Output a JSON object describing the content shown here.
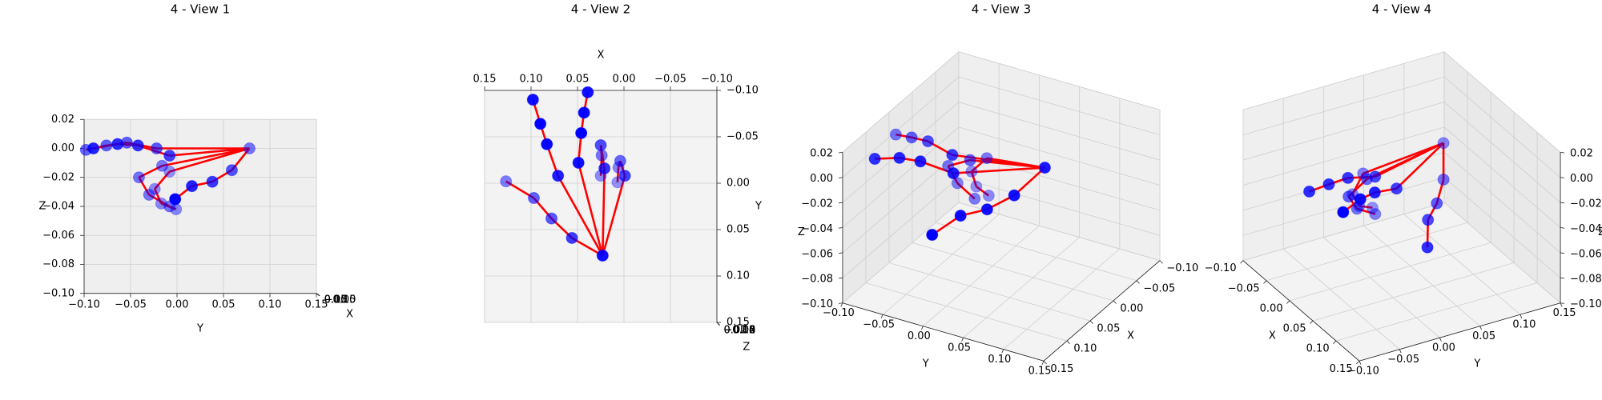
{
  "chart_data": [
    {
      "type": "scatter3d",
      "title": "4 - View 1",
      "elev": 0,
      "azim": 0,
      "xlabel": "X",
      "ylabel": "Y",
      "zlabel": "Z",
      "color": "#0000ff",
      "line_color": "#ff0000",
      "x": [
        0.023,
        0.056,
        0.078,
        0.097,
        0.127,
        0.071,
        0.083,
        0.09,
        0.098,
        0.049,
        0.046,
        0.043,
        0.039,
        0.021,
        0.025,
        0.024,
        0.025,
        -0.001,
        0.004,
        0.006,
        0.007
      ],
      "y": [
        0.078,
        0.059,
        0.038,
        0.016,
        -0.002,
        -0.008,
        -0.042,
        -0.064,
        -0.09,
        -0.022,
        -0.054,
        -0.076,
        -0.098,
        -0.016,
        -0.041,
        -0.03,
        -0.008,
        -0.008,
        -0.024,
        -0.017,
        -0.001
      ],
      "z": [
        0.0,
        -0.015,
        -0.023,
        -0.026,
        -0.035,
        -0.005,
        0.002,
        0.003,
        0.0,
        0.0,
        0.004,
        0.002,
        -0.001,
        -0.012,
        -0.02,
        -0.032,
        -0.04,
        -0.016,
        -0.028,
        -0.038,
        -0.042
      ],
      "xlim": [
        -0.1,
        0.15
      ],
      "ylim": [
        -0.1,
        0.15
      ],
      "zlim": [
        -0.1,
        0.02
      ],
      "xticks": [
        {
          "value": -0.1,
          "label": "−0.10"
        },
        {
          "value": -0.05,
          "label": "−0.05"
        },
        {
          "value": 0,
          "label": "0.00"
        },
        {
          "value": 0.05,
          "label": "0.05"
        },
        {
          "value": 0.1,
          "label": "0.10"
        },
        {
          "value": 0.15,
          "label": "0.15"
        }
      ],
      "yticks": [
        {
          "value": -0.1,
          "label": "−0.10"
        },
        {
          "value": -0.05,
          "label": "−0.05"
        },
        {
          "value": 0,
          "label": "0.00"
        },
        {
          "value": 0.05,
          "label": "0.05"
        },
        {
          "value": 0.1,
          "label": "0.10"
        },
        {
          "value": 0.15,
          "label": "0.15"
        }
      ],
      "zticks": [
        {
          "value": -0.1,
          "label": "−0.10"
        },
        {
          "value": -0.08,
          "label": "−0.08"
        },
        {
          "value": -0.06,
          "label": "−0.06"
        },
        {
          "value": -0.04,
          "label": "−0.04"
        },
        {
          "value": -0.02,
          "label": "−0.02"
        },
        {
          "value": 0,
          "label": "0.00"
        },
        {
          "value": 0.02,
          "label": "0.02"
        }
      ]
    },
    {
      "type": "scatter3d",
      "title": "4 - View 2",
      "elev": 90,
      "azim": 90,
      "xlabel": "X",
      "ylabel": "Y",
      "zlabel": "Z",
      "color": "#0000ff",
      "line_color": "#ff0000",
      "x": [
        0.023,
        0.056,
        0.078,
        0.097,
        0.127,
        0.071,
        0.083,
        0.09,
        0.098,
        0.049,
        0.046,
        0.043,
        0.039,
        0.021,
        0.025,
        0.024,
        0.025,
        -0.001,
        0.004,
        0.006,
        0.007
      ],
      "y": [
        0.078,
        0.059,
        0.038,
        0.016,
        -0.002,
        -0.008,
        -0.042,
        -0.064,
        -0.09,
        -0.022,
        -0.054,
        -0.076,
        -0.098,
        -0.016,
        -0.041,
        -0.03,
        -0.008,
        -0.008,
        -0.024,
        -0.017,
        -0.001
      ],
      "z": [
        0.0,
        -0.015,
        -0.023,
        -0.026,
        -0.035,
        -0.005,
        0.002,
        0.003,
        0.0,
        0.0,
        0.004,
        0.002,
        -0.001,
        -0.012,
        -0.02,
        -0.032,
        -0.04,
        -0.016,
        -0.028,
        -0.038,
        -0.042
      ],
      "xlim": [
        -0.1,
        0.15
      ],
      "ylim": [
        -0.1,
        0.15
      ],
      "zlim": [
        -0.1,
        0.02
      ],
      "xticks": [
        {
          "value": -0.1,
          "label": "−0.10"
        },
        {
          "value": -0.05,
          "label": "−0.05"
        },
        {
          "value": 0,
          "label": "0.00"
        },
        {
          "value": 0.05,
          "label": "0.05"
        },
        {
          "value": 0.1,
          "label": "0.10"
        },
        {
          "value": 0.15,
          "label": "0.15"
        }
      ],
      "yticks": [
        {
          "value": -0.1,
          "label": "−0.10"
        },
        {
          "value": -0.05,
          "label": "−0.05"
        },
        {
          "value": 0,
          "label": "0.00"
        },
        {
          "value": 0.05,
          "label": "0.05"
        },
        {
          "value": 0.1,
          "label": "0.10"
        },
        {
          "value": 0.15,
          "label": "0.15"
        }
      ],
      "zticks": [
        {
          "value": -0.1,
          "label": "−0.10"
        },
        {
          "value": -0.08,
          "label": "−0.08"
        },
        {
          "value": -0.06,
          "label": "−0.06"
        },
        {
          "value": -0.04,
          "label": "−0.04"
        },
        {
          "value": -0.02,
          "label": "−0.02"
        },
        {
          "value": 0,
          "label": "0.00"
        },
        {
          "value": 0.02,
          "label": "0.02"
        }
      ]
    },
    {
      "type": "scatter3d",
      "title": "4 - View 3",
      "elev": 30,
      "azim": 30,
      "xlabel": "X",
      "ylabel": "Y",
      "zlabel": "Z",
      "color": "#0000ff",
      "line_color": "#ff0000",
      "x": [
        0.023,
        0.056,
        0.078,
        0.097,
        0.127,
        0.071,
        0.083,
        0.09,
        0.098,
        0.049,
        0.046,
        0.043,
        0.039,
        0.021,
        0.025,
        0.024,
        0.025,
        -0.001,
        0.004,
        0.006,
        0.007
      ],
      "y": [
        0.078,
        0.059,
        0.038,
        0.016,
        -0.002,
        -0.008,
        -0.042,
        -0.064,
        -0.09,
        -0.022,
        -0.054,
        -0.076,
        -0.098,
        -0.016,
        -0.041,
        -0.03,
        -0.008,
        -0.008,
        -0.024,
        -0.017,
        -0.001
      ],
      "z": [
        0.0,
        -0.015,
        -0.023,
        -0.026,
        -0.035,
        -0.005,
        0.002,
        0.003,
        0.0,
        0.0,
        0.004,
        0.002,
        -0.001,
        -0.012,
        -0.02,
        -0.032,
        -0.04,
        -0.016,
        -0.028,
        -0.038,
        -0.042
      ],
      "xlim": [
        -0.1,
        0.15
      ],
      "ylim": [
        -0.1,
        0.15
      ],
      "zlim": [
        -0.1,
        0.02
      ],
      "xticks": [
        {
          "value": -0.1,
          "label": "−0.10"
        },
        {
          "value": -0.05,
          "label": "−0.05"
        },
        {
          "value": 0,
          "label": "0.00"
        },
        {
          "value": 0.05,
          "label": "0.05"
        },
        {
          "value": 0.1,
          "label": "0.10"
        },
        {
          "value": 0.15,
          "label": "0.15"
        }
      ],
      "yticks": [
        {
          "value": -0.1,
          "label": "−0.10"
        },
        {
          "value": -0.05,
          "label": "−0.05"
        },
        {
          "value": 0,
          "label": "0.00"
        },
        {
          "value": 0.05,
          "label": "0.05"
        },
        {
          "value": 0.1,
          "label": "0.10"
        },
        {
          "value": 0.15,
          "label": "0.15"
        }
      ],
      "zticks": [
        {
          "value": -0.1,
          "label": "−0.10"
        },
        {
          "value": -0.08,
          "label": "−0.08"
        },
        {
          "value": -0.06,
          "label": "−0.06"
        },
        {
          "value": -0.04,
          "label": "−0.04"
        },
        {
          "value": -0.02,
          "label": "−0.02"
        },
        {
          "value": 0,
          "label": "0.00"
        },
        {
          "value": 0.02,
          "label": "0.02"
        }
      ]
    },
    {
      "type": "scatter3d",
      "title": "4 - View 4",
      "elev": 30,
      "azim": -30,
      "xlabel": "X",
      "ylabel": "Y",
      "zlabel": "Z",
      "color": "#0000ff",
      "line_color": "#ff0000",
      "x": [
        0.023,
        0.056,
        0.078,
        0.097,
        0.127,
        0.071,
        0.083,
        0.09,
        0.098,
        0.049,
        0.046,
        0.043,
        0.039,
        0.021,
        0.025,
        0.024,
        0.025,
        -0.001,
        0.004,
        0.006,
        0.007
      ],
      "y": [
        0.078,
        0.059,
        0.038,
        0.016,
        -0.002,
        -0.008,
        -0.042,
        -0.064,
        -0.09,
        -0.022,
        -0.054,
        -0.076,
        -0.098,
        -0.016,
        -0.041,
        -0.03,
        -0.008,
        -0.008,
        -0.024,
        -0.017,
        -0.001
      ],
      "z": [
        0.0,
        -0.015,
        -0.023,
        -0.026,
        -0.035,
        -0.005,
        0.002,
        0.003,
        0.0,
        0.0,
        0.004,
        0.002,
        -0.001,
        -0.012,
        -0.02,
        -0.032,
        -0.04,
        -0.016,
        -0.028,
        -0.038,
        -0.042
      ],
      "xlim": [
        -0.1,
        0.15
      ],
      "ylim": [
        -0.1,
        0.15
      ],
      "zlim": [
        -0.1,
        0.02
      ],
      "xticks": [
        {
          "value": -0.1,
          "label": "−0.10"
        },
        {
          "value": -0.05,
          "label": "−0.05"
        },
        {
          "value": 0,
          "label": "0.00"
        },
        {
          "value": 0.05,
          "label": "0.05"
        },
        {
          "value": 0.1,
          "label": "0.10"
        },
        {
          "value": 0.15,
          "label": "0.15"
        }
      ],
      "yticks": [
        {
          "value": -0.1,
          "label": "−0.10"
        },
        {
          "value": -0.05,
          "label": "−0.05"
        },
        {
          "value": 0,
          "label": "0.00"
        },
        {
          "value": 0.05,
          "label": "0.05"
        },
        {
          "value": 0.1,
          "label": "0.10"
        },
        {
          "value": 0.15,
          "label": "0.15"
        }
      ],
      "zticks": [
        {
          "value": -0.1,
          "label": "−0.10"
        },
        {
          "value": -0.08,
          "label": "−0.08"
        },
        {
          "value": -0.06,
          "label": "−0.06"
        },
        {
          "value": -0.04,
          "label": "−0.04"
        },
        {
          "value": -0.02,
          "label": "−0.02"
        },
        {
          "value": 0,
          "label": "0.00"
        },
        {
          "value": 0.02,
          "label": "0.02"
        }
      ]
    }
  ]
}
